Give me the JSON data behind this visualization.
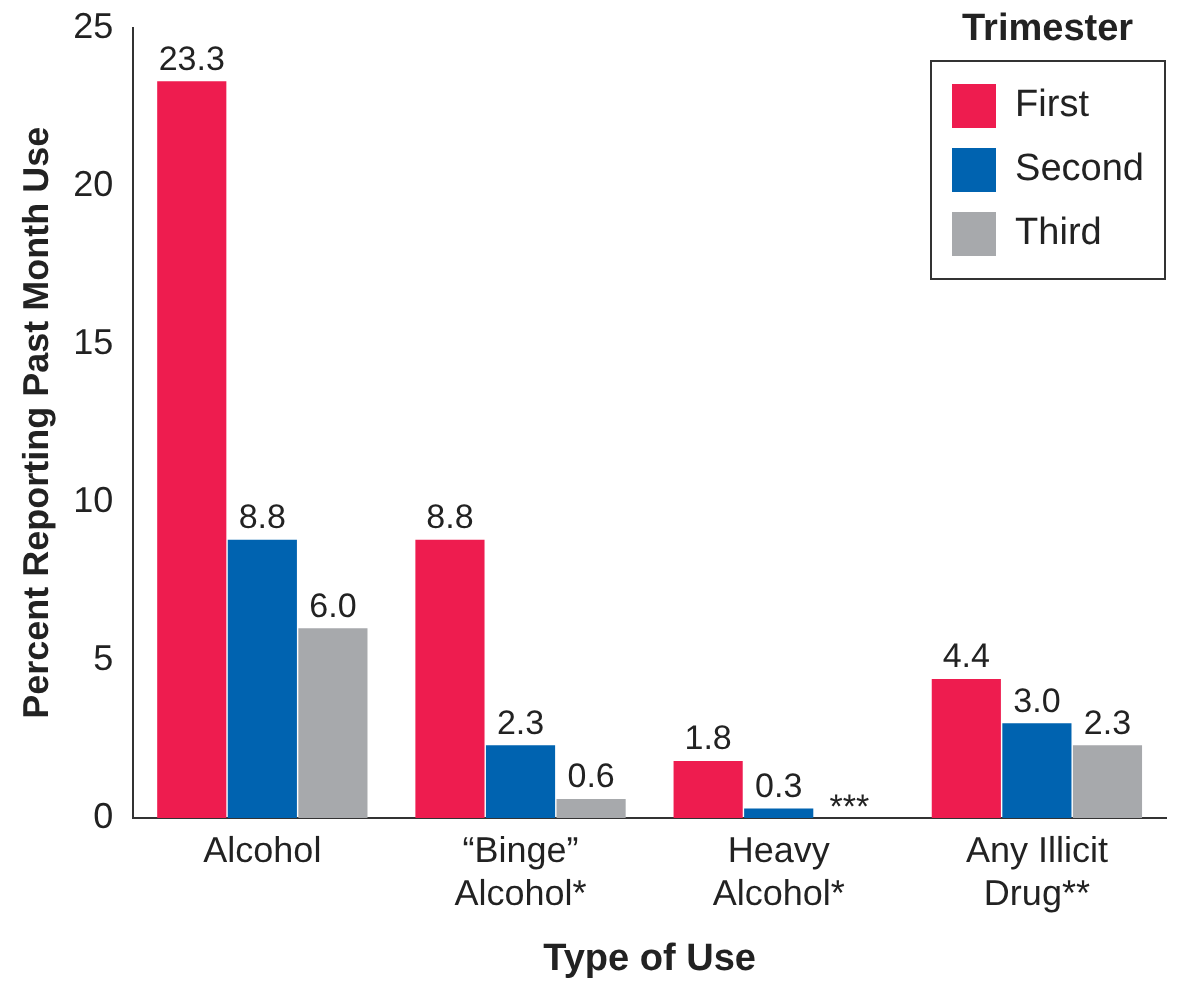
{
  "chart_data": {
    "type": "bar",
    "xlabel": "Type of Use",
    "ylabel": "Percent Reporting Past Month Use",
    "legend_title": "Trimester",
    "legend": "top right",
    "grid": false,
    "categories": [
      "Alcohol",
      "“Binge”\nAlcohol*",
      "Heavy\nAlcohol*",
      "Any Illicit\nDrug**"
    ],
    "series": [
      {
        "name": "First",
        "color": "#ee1c4f",
        "values": [
          23.3,
          8.8,
          1.8,
          4.4
        ],
        "value_labels": [
          "23.3",
          "8.8",
          "1.8",
          "4.4"
        ]
      },
      {
        "name": "Second",
        "color": "#0063b0",
        "values": [
          8.8,
          2.3,
          0.3,
          3.0
        ],
        "value_labels": [
          "8.8",
          "2.3",
          "0.3",
          "3.0"
        ]
      },
      {
        "name": "Third",
        "color": "#a7a9ac",
        "values": [
          6.0,
          0.6,
          null,
          2.3
        ],
        "value_labels": [
          "6.0",
          "0.6",
          "***",
          "2.3"
        ]
      }
    ],
    "ylim": [
      0,
      25
    ],
    "yticks": [
      0,
      5,
      10,
      15,
      20,
      25
    ]
  }
}
